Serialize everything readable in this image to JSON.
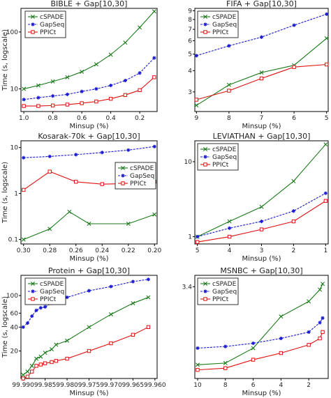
{
  "figure": {
    "colors": {
      "cSPADE": "#1a7a1a",
      "GapSeq": "#1a1ad0",
      "PPICt": "#e01010",
      "frame": "#000000"
    },
    "markers": {
      "cSPADE": "x",
      "GapSeq": "*",
      "PPICt": "square"
    }
  },
  "chart_data": [
    {
      "type": "line",
      "title": "BIBLE + Gap[10,30]",
      "xlabel": "Minsup (%)",
      "ylabel": "Time (s, logscale)",
      "yscale": "log",
      "xlim": [
        1.02,
        0.08
      ],
      "ylim": [
        4.0,
        260
      ],
      "xticks": [
        1.0,
        0.8,
        0.6,
        0.4,
        0.2
      ],
      "xtick_labels": [
        "1.0",
        "0.8",
        "0.6",
        "0.4",
        "0.2"
      ],
      "yticks": [
        10,
        100
      ],
      "ytick_labels": [
        "10",
        "100"
      ],
      "legend": "top-left",
      "x": [
        1.0,
        0.9,
        0.8,
        0.7,
        0.6,
        0.5,
        0.4,
        0.3,
        0.2,
        0.1
      ],
      "series": [
        {
          "name": "cSPADE",
          "values": [
            10,
            11.5,
            13.5,
            16,
            20,
            27,
            40,
            65,
            120,
            230
          ]
        },
        {
          "name": "GapSeq",
          "values": [
            6.5,
            7,
            7.5,
            8,
            9,
            10,
            11.5,
            14,
            19,
            35
          ]
        },
        {
          "name": "PPICt",
          "values": [
            5,
            5,
            5.1,
            5.3,
            5.6,
            6,
            6.7,
            7.8,
            9.5,
            16
          ]
        }
      ]
    },
    {
      "type": "line",
      "title": "FIFA + Gap[10,30]",
      "xlabel": "Minsup (%)",
      "ylabel": "",
      "yscale": "log",
      "xlim": [
        9.05,
        4.95
      ],
      "ylim": [
        2.3,
        9.3
      ],
      "xticks": [
        9,
        8,
        7,
        6,
        5
      ],
      "xtick_labels": [
        "9",
        "8",
        "7",
        "6",
        "5"
      ],
      "yticks": [
        3,
        4,
        5,
        6,
        7,
        8,
        9
      ],
      "ytick_labels": [
        "3",
        "4",
        "5",
        "6",
        "7",
        "8",
        "9"
      ],
      "legend": "top-left",
      "x": [
        9,
        8,
        7,
        6,
        5
      ],
      "series": [
        {
          "name": "cSPADE",
          "values": [
            2.5,
            3.3,
            3.9,
            4.3,
            6.2
          ]
        },
        {
          "name": "GapSeq",
          "values": [
            4.9,
            5.6,
            6.3,
            7.4,
            8.6
          ]
        },
        {
          "name": "PPICt",
          "values": [
            2.7,
            3.05,
            3.6,
            4.2,
            4.35
          ]
        }
      ]
    },
    {
      "type": "line",
      "title": "Kosarak-70k + Gap[10,30]",
      "xlabel": "Minsup (%)",
      "ylabel": "Time (s, logscale)",
      "yscale": "log",
      "xlim": [
        0.302,
        0.198
      ],
      "ylim": [
        0.08,
        14
      ],
      "xticks": [
        0.3,
        0.28,
        0.26,
        0.24,
        0.22,
        0.2
      ],
      "xtick_labels": [
        "0.30",
        "0.28",
        "0.26",
        "0.24",
        "0.22",
        "0.20"
      ],
      "yticks": [
        0.1,
        1,
        10
      ],
      "ytick_labels": [
        "0.1",
        "1",
        "10"
      ],
      "legend": "middle-right",
      "x": [
        0.3,
        0.28,
        0.27,
        0.26,
        0.25,
        0.24,
        0.22,
        0.2
      ],
      "series": [
        {
          "name": "cSPADE",
          "values": null,
          "x": [
            0.3,
            0.28,
            0.27,
            0.26,
            0.25,
            0.24,
            0.22,
            0.2
          ]
        },
        {
          "name": "GapSeq",
          "values": null
        },
        {
          "name": "PPICt",
          "values": null
        }
      ],
      "series_points": [
        {
          "name": "cSPADE",
          "x": [
            0.3,
            0.28,
            0.265,
            0.25,
            0.22,
            0.2
          ],
          "values": [
            0.1,
            0.17,
            0.4,
            0.22,
            0.22,
            0.35
          ]
        },
        {
          "name": "GapSeq",
          "x": [
            0.3,
            0.28,
            0.26,
            0.24,
            0.22,
            0.2
          ],
          "values": [
            6,
            6.4,
            7,
            7.8,
            8.8,
            10.5
          ]
        },
        {
          "name": "PPICt",
          "x": [
            0.3,
            0.28,
            0.26,
            0.24,
            0.22,
            0.2
          ],
          "values": [
            1.2,
            3,
            1.8,
            1.6,
            1.65,
            1.8
          ]
        }
      ]
    },
    {
      "type": "line",
      "title": "LEVIATHAN + Gap[10,30]",
      "xlabel": "Minsup (%)",
      "ylabel": "",
      "yscale": "log",
      "xlim": [
        5.08,
        0.92
      ],
      "ylim": [
        0.8,
        19
      ],
      "xticks": [
        5,
        4,
        3,
        2,
        1
      ],
      "xtick_labels": [
        "5",
        "4",
        "3",
        "2",
        "1"
      ],
      "yticks": [
        1,
        10
      ],
      "ytick_labels": [
        "1",
        "10"
      ],
      "legend": "top-left",
      "series_points": [
        {
          "name": "cSPADE",
          "x": [
            5,
            4,
            3,
            2,
            1
          ],
          "values": [
            1.0,
            1.6,
            2.5,
            5.5,
            17
          ]
        },
        {
          "name": "GapSeq",
          "x": [
            5,
            4,
            3,
            2,
            1
          ],
          "values": [
            1.0,
            1.3,
            1.6,
            2.2,
            3.8
          ]
        },
        {
          "name": "PPICt",
          "x": [
            5,
            4,
            3,
            2,
            1
          ],
          "values": [
            0.85,
            1.0,
            1.25,
            1.6,
            3.0
          ]
        }
      ]
    },
    {
      "type": "line",
      "title": "Protein + Gap[10,30]",
      "xlabel": "Minsup (%)",
      "ylabel": "Time (s, logscale)",
      "yscale": "log",
      "xlim": [
        99.9905,
        99.9595
      ],
      "ylim": [
        9,
        180
      ],
      "xticks": [
        99.99,
        99.985,
        99.98,
        99.975,
        99.97,
        99.965,
        99.96
      ],
      "xtick_labels": [
        "99.990",
        "99.985",
        "99.980",
        "99.975",
        "99.970",
        "99.965",
        "99.960"
      ],
      "yticks": [
        20,
        40,
        60,
        100
      ],
      "ytick_labels": [
        "20",
        "40",
        "60",
        "100"
      ],
      "legend": "top-left",
      "series_points": [
        {
          "name": "cSPADE",
          "x": [
            99.99,
            99.989,
            99.988,
            99.987,
            99.986,
            99.985,
            99.9835,
            99.9825,
            99.98,
            99.975,
            99.97,
            99.965,
            99.9615
          ],
          "values": [
            10,
            11,
            13,
            16,
            17,
            19,
            21,
            24,
            27,
            40,
            58,
            80,
            95
          ]
        },
        {
          "name": "GapSeq",
          "x": [
            99.99,
            99.989,
            99.988,
            99.987,
            99.986,
            99.985,
            99.9835,
            99.9825,
            99.98,
            99.975,
            99.97,
            99.965,
            99.9615
          ],
          "values": [
            40,
            45,
            55,
            65,
            70,
            72,
            80,
            85,
            95,
            115,
            130,
            150,
            160
          ]
        },
        {
          "name": "PPICt",
          "x": [
            99.99,
            99.989,
            99.988,
            99.987,
            99.986,
            99.985,
            99.9835,
            99.9825,
            99.98,
            99.975,
            99.97,
            99.965,
            99.9615
          ],
          "values": [
            9,
            9.5,
            11,
            13,
            13.5,
            14,
            14.5,
            15,
            16,
            20,
            25,
            32,
            40
          ]
        }
      ]
    },
    {
      "type": "line",
      "title": "MSNBC + Gap[10,30]",
      "xlabel": "Minsup (%)",
      "ylabel": "",
      "yscale": "log",
      "xlim": [
        10.2,
        0.6
      ],
      "ylim": [
        2.82,
        3.48
      ],
      "xticks": [
        10,
        8,
        6,
        4,
        2
      ],
      "xtick_labels": [
        "10",
        "8",
        "6",
        "4",
        "2"
      ],
      "yticks": [
        3.4
      ],
      "ytick_labels": [
        "3.4"
      ],
      "legend": "top-left",
      "series_points": [
        {
          "name": "cSPADE",
          "x": [
            10,
            8,
            6,
            4,
            2,
            1.2,
            1
          ],
          "values": [
            2.9,
            2.91,
            3.0,
            3.2,
            3.3,
            3.38,
            3.42
          ]
        },
        {
          "name": "GapSeq",
          "x": [
            10,
            8,
            6,
            4,
            2,
            1.2,
            1
          ],
          "values": [
            3.0,
            3.01,
            3.03,
            3.06,
            3.1,
            3.16,
            3.19
          ]
        },
        {
          "name": "PPICt",
          "x": [
            10,
            8,
            6,
            4,
            2,
            1.2,
            1
          ],
          "values": [
            2.87,
            2.88,
            2.93,
            2.97,
            3.02,
            3.06,
            3.1
          ]
        }
      ]
    }
  ]
}
